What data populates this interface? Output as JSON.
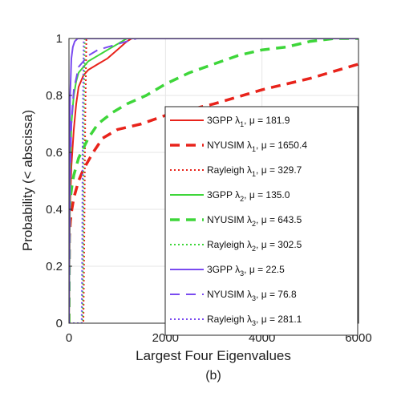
{
  "chart_data": {
    "type": "line",
    "title": "",
    "caption": "(b)",
    "xlabel": "Largest Four Eigenvalues",
    "ylabel": "Probability (< abscissa)",
    "xlim": [
      0,
      6000
    ],
    "ylim": [
      0,
      1
    ],
    "xticks": [
      0,
      2000,
      4000,
      6000
    ],
    "yticks": [
      0,
      0.2,
      0.4,
      0.6,
      0.8,
      1
    ],
    "grid": true,
    "legend_position": "bottom-right inside plot",
    "series": [
      {
        "name": "3GPP λ1, μ = 181.9",
        "legend": {
          "prefix": "3GPP λ",
          "sub": "1",
          "suffix": ", μ = 181.9"
        },
        "color": "#e8231b",
        "dash": "solid",
        "width": 2,
        "x": [
          0,
          20,
          50,
          100,
          150,
          200,
          300,
          400,
          600,
          800,
          1000,
          1200,
          1300
        ],
        "y": [
          0,
          0.4,
          0.55,
          0.68,
          0.77,
          0.83,
          0.87,
          0.89,
          0.91,
          0.93,
          0.96,
          0.99,
          1.0
        ]
      },
      {
        "name": "NYUSIM λ1, μ = 1650.4",
        "legend": {
          "prefix": "NYUSIM λ",
          "sub": "1",
          "suffix": ", μ = 1650.4"
        },
        "color": "#e8231b",
        "dash": "12,8",
        "width": 3.5,
        "x": [
          0,
          10,
          30,
          60,
          100,
          200,
          300,
          500,
          700,
          1000,
          1500,
          2000,
          3000,
          4000,
          5000,
          6000
        ],
        "y": [
          0,
          0.3,
          0.36,
          0.4,
          0.44,
          0.5,
          0.54,
          0.6,
          0.65,
          0.68,
          0.7,
          0.73,
          0.77,
          0.82,
          0.86,
          0.91
        ]
      },
      {
        "name": "Rayleigh λ1, μ = 329.7",
        "legend": {
          "prefix": "Rayleigh λ",
          "sub": "1",
          "suffix": ", μ = 329.7"
        },
        "color": "#e8231b",
        "dash": "2,3",
        "width": 2,
        "x": [
          0,
          300,
          318,
          335,
          360,
          6000
        ],
        "y": [
          0,
          0,
          0.3,
          0.7,
          1.0,
          1.0
        ]
      },
      {
        "name": "3GPP λ2, μ = 135.0",
        "legend": {
          "prefix": "3GPP λ",
          "sub": "2",
          "suffix": ", μ = 135.0"
        },
        "color": "#3ed63a",
        "dash": "solid",
        "width": 2,
        "x": [
          0,
          20,
          50,
          100,
          150,
          200,
          300,
          400,
          600,
          800,
          1000,
          1200
        ],
        "y": [
          0,
          0.5,
          0.7,
          0.8,
          0.85,
          0.88,
          0.9,
          0.92,
          0.94,
          0.96,
          0.98,
          1.0
        ]
      },
      {
        "name": "NYUSIM λ2, μ = 643.5",
        "legend": {
          "prefix": "NYUSIM λ",
          "sub": "2",
          "suffix": ", μ = 643.5"
        },
        "color": "#3ed63a",
        "dash": "12,8",
        "width": 3.5,
        "x": [
          0,
          10,
          30,
          60,
          100,
          200,
          400,
          600,
          900,
          1200,
          1600,
          2000,
          2500,
          3000,
          3500,
          4000,
          4500,
          5000,
          5500,
          6000
        ],
        "y": [
          0,
          0.4,
          0.44,
          0.48,
          0.52,
          0.58,
          0.65,
          0.7,
          0.74,
          0.77,
          0.8,
          0.84,
          0.88,
          0.91,
          0.94,
          0.96,
          0.97,
          0.99,
          1.0,
          1.0
        ]
      },
      {
        "name": "Rayleigh λ2, μ = 302.5",
        "legend": {
          "prefix": "Rayleigh λ",
          "sub": "2",
          "suffix": ", μ = 302.5"
        },
        "color": "#3ed63a",
        "dash": "2,3",
        "width": 2,
        "x": [
          0,
          280,
          296,
          305,
          325,
          6000
        ],
        "y": [
          0,
          0,
          0.3,
          0.7,
          1.0,
          1.0
        ]
      },
      {
        "name": "3GPP λ3, μ = 22.5",
        "legend": {
          "prefix": "3GPP λ",
          "sub": "3",
          "suffix": ", μ = 22.5"
        },
        "color": "#7a4bf0",
        "dash": "solid",
        "width": 2,
        "x": [
          0,
          10,
          25,
          50,
          80,
          120,
          180,
          6000
        ],
        "y": [
          0,
          0.5,
          0.8,
          0.93,
          0.97,
          0.99,
          1.0,
          1.0
        ]
      },
      {
        "name": "NYUSIM λ3, μ = 76.8",
        "legend": {
          "prefix": "NYUSIM λ",
          "sub": "3",
          "suffix": ", μ = 76.8"
        },
        "color": "#7a4bf0",
        "dash": "12,8",
        "width": 2,
        "x": [
          0,
          20,
          50,
          100,
          200,
          400,
          600,
          800,
          1000,
          1200,
          1400,
          6000
        ],
        "y": [
          0,
          0.5,
          0.7,
          0.82,
          0.9,
          0.94,
          0.96,
          0.97,
          0.98,
          0.99,
          1.0,
          1.0
        ]
      },
      {
        "name": "Rayleigh λ3, μ = 281.1",
        "legend": {
          "prefix": "Rayleigh λ",
          "sub": "3",
          "suffix": ", μ = 281.1"
        },
        "color": "#7a4bf0",
        "dash": "2,3",
        "width": 2,
        "x": [
          0,
          262,
          276,
          285,
          305,
          6000
        ],
        "y": [
          0,
          0,
          0.3,
          0.7,
          1.0,
          1.0
        ]
      }
    ]
  }
}
